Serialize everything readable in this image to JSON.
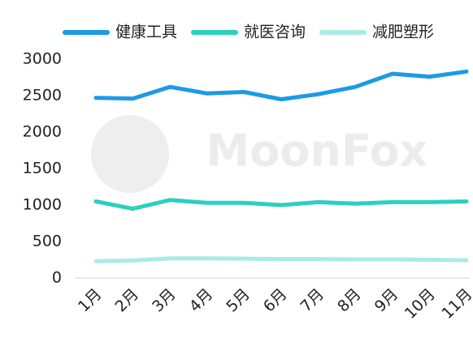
{
  "chart_data": {
    "type": "line",
    "watermark": "MoonFox",
    "categories": [
      "1月",
      "2月",
      "3月",
      "4月",
      "5月",
      "6月",
      "7月",
      "8月",
      "9月",
      "10月",
      "11月"
    ],
    "series": [
      {
        "name": "健康工具",
        "color": "#1c9ae6",
        "values": [
          2470,
          2460,
          2620,
          2530,
          2550,
          2450,
          2520,
          2620,
          2800,
          2760,
          2830
        ]
      },
      {
        "name": "就医咨询",
        "color": "#2bd0c0",
        "values": [
          1050,
          950,
          1070,
          1030,
          1030,
          1000,
          1040,
          1020,
          1040,
          1040,
          1050
        ]
      },
      {
        "name": "减肥塑形",
        "color": "#a9ece6",
        "values": [
          230,
          240,
          270,
          270,
          265,
          260,
          260,
          255,
          255,
          250,
          245
        ]
      }
    ],
    "ylim": [
      0,
      3000
    ],
    "yticks": [
      0,
      500,
      1000,
      1500,
      2000,
      2500,
      3000
    ],
    "legend": "top",
    "grid": false
  }
}
